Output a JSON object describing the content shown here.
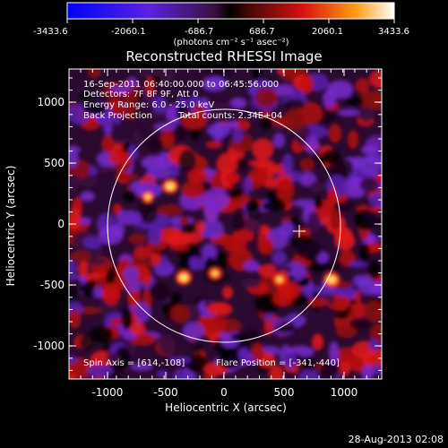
{
  "colorbar": {
    "ticks": [
      "-3433.6",
      "-2060.1",
      "-686.7",
      "686.7",
      "2060.1",
      "3433.6"
    ],
    "units": "(photons cm⁻² s⁻¹ asec⁻²)"
  },
  "title": "Reconstructed RHESSI Image",
  "info": {
    "line1": "16-Sep-2011 06:40:00.000 to 06:45:56.000",
    "line2": "Detectors: 7F 8F 9F, Att 0",
    "line3": "Energy Range: 6.0 - 25.0 keV",
    "line4": "Back Projection",
    "line4b": "Total counts: 2.34E+04",
    "spin_axis": "Spin Axis = [614,-108]",
    "flare_position": "Flare Position = [-341,-440]"
  },
  "axes": {
    "xlabel": "Heliocentric X (arcsec)",
    "ylabel": "Heliocentric Y (arcsec)",
    "xticks": [
      "-1000",
      "-500",
      "0",
      "500",
      "1000"
    ],
    "yticks": [
      "1000",
      "500",
      "0",
      "-500",
      "-1000"
    ]
  },
  "footer": {
    "date": "28-Aug-2013 02:08"
  },
  "colors": {
    "negative": "#0000ff",
    "mid_negative": "#7a2ad8",
    "zero": "#000000",
    "positive_low": "#cc1010",
    "positive_high": "#ffe080",
    "max": "#ffffff"
  }
}
